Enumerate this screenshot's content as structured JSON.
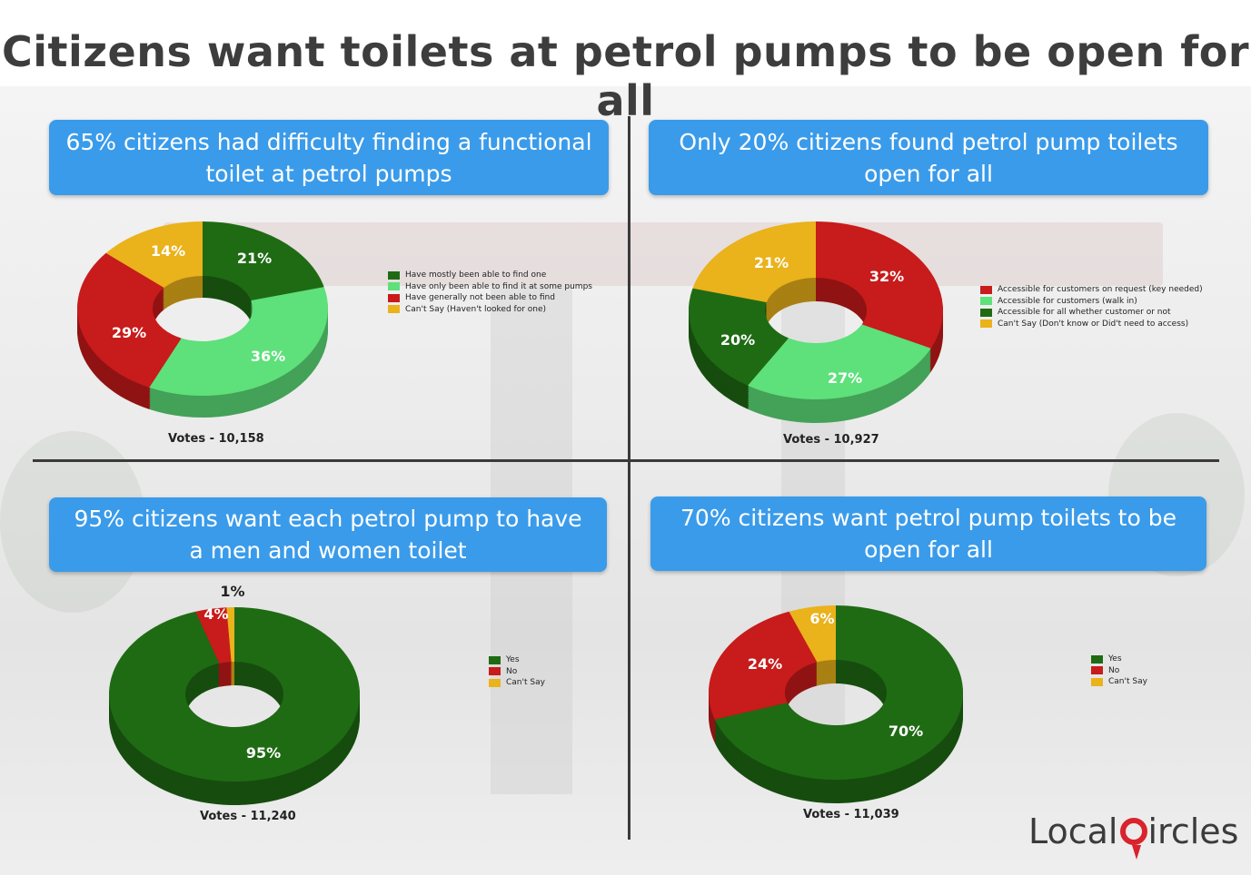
{
  "title": "Citizens want toilets at petrol pumps to be open for all",
  "colors": {
    "dark_green": "#1f6b14",
    "light_green": "#5ee07a",
    "red": "#c81b1b",
    "yellow": "#eab21b",
    "banner_blue": "#3a9bea",
    "brand_red": "#d9232d"
  },
  "panels": [
    {
      "banner": "65% citizens had difficulty finding a functional toilet at petrol pumps",
      "votes": "Votes - 10,158",
      "legend": [
        "Have mostly been able to find one",
        "Have only been able to find it at some pumps",
        "Have generally not been able to find",
        "Can't Say (Haven't looked for one)"
      ]
    },
    {
      "banner": "Only 20% citizens found petrol pump toilets open for all",
      "votes": "Votes - 10,927",
      "legend": [
        "Accessible for customers on request (key needed)",
        "Accessible for customers (walk in)",
        "Accessible for all whether customer or not",
        "Can't Say (Don't know or Did't need to access)"
      ]
    },
    {
      "banner": "95% citizens want each petrol pump to have a men and women toilet",
      "votes": "Votes - 11,240",
      "legend": [
        "Yes",
        "No",
        "Can't Say"
      ]
    },
    {
      "banner": "70% citizens want petrol pump toilets to be open for all",
      "votes": "Votes - 11,039",
      "legend": [
        "Yes",
        "No",
        "Can't Say"
      ]
    }
  ],
  "chart_data": [
    {
      "type": "pie",
      "title": "65% citizens had difficulty finding a functional toilet at petrol pumps",
      "categories": [
        "Have mostly been able to find one",
        "Have only been able to find it at some pumps",
        "Have generally not been able to find",
        "Can't Say (Haven't looked for one)"
      ],
      "values": [
        21,
        36,
        29,
        14
      ],
      "labels": [
        "21%",
        "36%",
        "29%",
        "14%"
      ],
      "colors": [
        "#1f6b14",
        "#5ee07a",
        "#c81b1b",
        "#eab21b"
      ],
      "legend_position": "right"
    },
    {
      "type": "pie",
      "title": "Only 20% citizens found petrol pump toilets open for all",
      "categories": [
        "Accessible for customers on request (key needed)",
        "Accessible for customers (walk in)",
        "Accessible for all whether customer or not",
        "Can't Say (Don't know or Did't need to access)"
      ],
      "values": [
        32,
        27,
        20,
        21
      ],
      "labels": [
        "32%",
        "27%",
        "20%",
        "21%"
      ],
      "colors": [
        "#c81b1b",
        "#5ee07a",
        "#1f6b14",
        "#eab21b"
      ],
      "legend_position": "right"
    },
    {
      "type": "pie",
      "title": "95% citizens want each petrol pump to have a men and women toilet",
      "categories": [
        "Yes",
        "No",
        "Can't Say"
      ],
      "values": [
        95,
        4,
        1
      ],
      "labels": [
        "95%",
        "4%",
        "1%"
      ],
      "colors": [
        "#1f6b14",
        "#c81b1b",
        "#eab21b"
      ],
      "legend_position": "right"
    },
    {
      "type": "pie",
      "title": "70% citizens want petrol pump toilets to be open for all",
      "categories": [
        "Yes",
        "No",
        "Can't Say"
      ],
      "values": [
        70,
        24,
        6
      ],
      "labels": [
        "70%",
        "24%",
        "6%"
      ],
      "colors": [
        "#1f6b14",
        "#c81b1b",
        "#eab21b"
      ],
      "legend_position": "right"
    }
  ],
  "brand": {
    "left": "Local",
    "right": "ircles"
  }
}
